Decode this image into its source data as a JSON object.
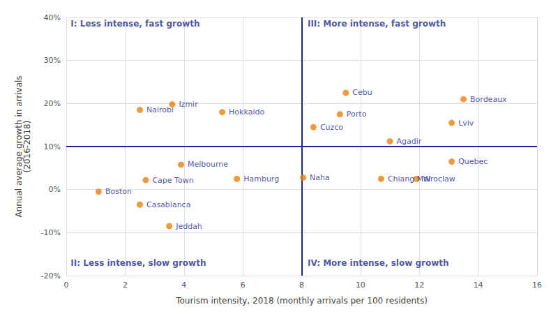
{
  "chart_data": {
    "type": "scatter",
    "xlabel": "Tourism intensity, 2018 (monthly arrivals per 100 residents)",
    "ylabel": "Annual average growth in arrivals\n(2016-2018)",
    "labels": [
      "Boston",
      "Casablanca",
      "Cape Town",
      "Nairobi",
      "Jeddah",
      "Izmir",
      "Melbourne",
      "Hamburg",
      "Hokkaido",
      "Naha",
      "Cuzco",
      "Porto",
      "Cebu",
      "Chiang Mai",
      "Agadir",
      "Wroclaw",
      "Quebec",
      "Lviv",
      "Bordeaux"
    ],
    "x": [
      1.1,
      2.5,
      2.7,
      2.5,
      3.5,
      3.6,
      3.9,
      5.8,
      5.3,
      8.05,
      8.4,
      9.3,
      9.5,
      10.7,
      11.0,
      11.9,
      13.1,
      13.1,
      13.5
    ],
    "values": [
      -0.5,
      -3.5,
      2.2,
      18.5,
      -8.5,
      19.8,
      5.8,
      2.5,
      18.0,
      2.8,
      14.5,
      17.5,
      22.5,
      2.5,
      11.2,
      2.5,
      6.5,
      15.5,
      21.0
    ],
    "color": "#E8820C",
    "xlim": [
      0,
      16
    ],
    "ylim": [
      -20,
      40
    ],
    "xticks": [
      0,
      2,
      4,
      6,
      8,
      10,
      12,
      14,
      16
    ],
    "yticks": [
      {
        "value": -20,
        "label": "-20%"
      },
      {
        "value": -10,
        "label": "-10%"
      },
      {
        "value": 0,
        "label": "0%"
      },
      {
        "value": 10,
        "label": "10%"
      },
      {
        "value": 20,
        "label": "20%"
      },
      {
        "value": 30,
        "label": "30%"
      },
      {
        "value": 40,
        "label": "40%"
      }
    ],
    "grid": true,
    "vline": 8,
    "hline": 10,
    "annotations": [
      {
        "text": "I: Less intense, fast growth",
        "x": 0.15,
        "y": 38.5
      },
      {
        "text": "II: Less intense, slow growth",
        "x": 0.15,
        "y": -17
      },
      {
        "text": "III: More intense, fast growth",
        "x": 8.2,
        "y": 38.5
      },
      {
        "text": "IV: More intense, slow growth",
        "x": 8.2,
        "y": -17
      }
    ]
  }
}
